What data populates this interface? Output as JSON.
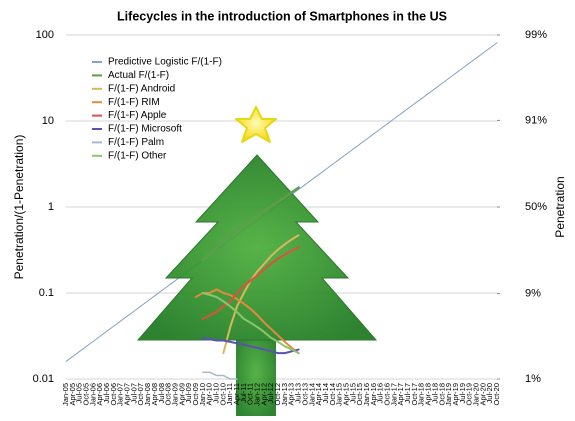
{
  "chart_data": {
    "type": "line",
    "title": "Lifecycles in the introduction of Smartphones in the US",
    "y_label": "Penetration/(1-Penetration)",
    "y2_label": "Penetration",
    "log_scale": true,
    "grid": true,
    "legend": "upper left",
    "ylim": [
      0.01,
      100
    ],
    "yticks": [
      {
        "value": 0.01,
        "label": "0.01"
      },
      {
        "value": 0.1,
        "label": "0.1"
      },
      1,
      10,
      100
    ],
    "y2scale": "logit",
    "y2lim": [
      1,
      99
    ],
    "y2ticks": [
      {
        "value": 1,
        "label": "1%"
      },
      {
        "value": 9,
        "label": "9%"
      },
      {
        "value": 50,
        "label": "50%"
      },
      {
        "value": 91,
        "label": "91%"
      },
      {
        "value": 99,
        "label": "99%"
      }
    ],
    "categories": [
      "Jan-05",
      "Apr-05",
      "Jul-05",
      "Oct-05",
      "Jan-06",
      "Apr-06",
      "Jul-06",
      "Oct-06",
      "Jan-07",
      "Apr-07",
      "Jul-07",
      "Oct-07",
      "Jan-08",
      "Apr-08",
      "Jul-08",
      "Oct-08",
      "Jan-09",
      "Apr-09",
      "Jul-09",
      "Oct-09",
      "Jan-10",
      "Apr-10",
      "Jul-10",
      "Oct-10",
      "Jan-11",
      "Apr-11",
      "Jul-11",
      "Oct-11",
      "Jan-12",
      "Apr-12",
      "Jul-12",
      "Oct-12",
      "Jan-13",
      "Apr-13",
      "Jul-13",
      "Oct-13",
      "Jan-14",
      "Apr-14",
      "Jul-14",
      "Oct-14",
      "Jan-15",
      "Apr-15",
      "Jul-15",
      "Oct-15",
      "Jan-16",
      "Apr-16",
      "Jul-16",
      "Oct-16",
      "Jan-17",
      "Apr-17",
      "Jul-17",
      "Oct-17",
      "Jan-18",
      "Apr-18",
      "Jul-18",
      "Oct-18",
      "Jan-19",
      "Apr-19",
      "Jul-19",
      "Oct-19",
      "Jan-20",
      "Apr-20",
      "Jul-20",
      "Oct-20"
    ],
    "series": [
      {
        "name": "Predictive Logistic F/(1-F)",
        "color": "#86a3c6",
        "width": 1,
        "values": [
          0.016,
          0.0183,
          0.021,
          0.024,
          0.0275,
          0.0315,
          0.0361,
          0.0413,
          0.0473,
          0.0541,
          0.062,
          0.071,
          0.0813,
          0.0931,
          0.107,
          0.122,
          0.14,
          0.16,
          0.183,
          0.21,
          0.24,
          0.275,
          0.315,
          0.361,
          0.413,
          0.473,
          0.541,
          0.62,
          0.71,
          0.813,
          0.931,
          1.07,
          1.22,
          1.4,
          1.6,
          1.83,
          2.1,
          2.4,
          2.75,
          3.15,
          3.61,
          4.13,
          4.73,
          5.41,
          6.2,
          7.1,
          8.13,
          9.31,
          10.7,
          12.2,
          14.0,
          16.0,
          18.3,
          21.0,
          24.0,
          27.5,
          31.5,
          36.1,
          41.3,
          47.3,
          54.1,
          62,
          71,
          81.3
        ]
      },
      {
        "name": "Actual F/(1-F)",
        "color": "#5e9e4b",
        "width": 2.5,
        "values": [
          null,
          null,
          null,
          null,
          null,
          null,
          null,
          null,
          null,
          null,
          null,
          null,
          null,
          null,
          null,
          null,
          null,
          null,
          null,
          null,
          0.24,
          0.28,
          0.33,
          0.39,
          0.46,
          0.53,
          0.6,
          0.68,
          0.78,
          0.9,
          1.02,
          1.15,
          1.3,
          1.48,
          1.68,
          null,
          null,
          null,
          null,
          null,
          null,
          null,
          null,
          null,
          null,
          null,
          null,
          null,
          null,
          null,
          null,
          null,
          null,
          null,
          null,
          null,
          null,
          null,
          null,
          null,
          null,
          null,
          null,
          null
        ]
      },
      {
        "name": "F/(1-F) Android",
        "color": "#dcb55c",
        "width": 2,
        "values": [
          null,
          null,
          null,
          null,
          null,
          null,
          null,
          null,
          null,
          null,
          null,
          null,
          null,
          null,
          null,
          null,
          null,
          null,
          null,
          null,
          null,
          null,
          null,
          0.02,
          0.04,
          0.07,
          0.1,
          0.14,
          0.18,
          0.22,
          0.27,
          0.32,
          0.37,
          0.42,
          0.47,
          null,
          null,
          null,
          null,
          null,
          null,
          null,
          null,
          null,
          null,
          null,
          null,
          null,
          null,
          null,
          null,
          null,
          null,
          null,
          null,
          null,
          null,
          null,
          null,
          null,
          null,
          null,
          null,
          null
        ]
      },
      {
        "name": "F/(1-F) RIM",
        "color": "#e38a3d",
        "width": 2,
        "values": [
          null,
          null,
          null,
          null,
          null,
          null,
          null,
          null,
          null,
          null,
          null,
          null,
          null,
          null,
          null,
          null,
          null,
          null,
          null,
          0.09,
          0.1,
          0.1,
          0.11,
          0.1,
          0.095,
          0.085,
          0.075,
          0.065,
          0.055,
          0.045,
          0.038,
          0.032,
          0.027,
          0.023,
          0.02,
          null,
          null,
          null,
          null,
          null,
          null,
          null,
          null,
          null,
          null,
          null,
          null,
          null,
          null,
          null,
          null,
          null,
          null,
          null,
          null,
          null,
          null,
          null,
          null,
          null,
          null,
          null,
          null,
          null
        ]
      },
      {
        "name": "F/(1-F) Apple",
        "color": "#d8553b",
        "width": 2,
        "values": [
          null,
          null,
          null,
          null,
          null,
          null,
          null,
          null,
          null,
          null,
          null,
          null,
          null,
          null,
          null,
          null,
          null,
          null,
          null,
          null,
          0.05,
          0.055,
          0.06,
          0.07,
          0.08,
          0.1,
          0.12,
          0.14,
          0.16,
          0.19,
          0.22,
          0.25,
          0.28,
          0.31,
          0.34,
          null,
          null,
          null,
          null,
          null,
          null,
          null,
          null,
          null,
          null,
          null,
          null,
          null,
          null,
          null,
          null,
          null,
          null,
          null,
          null,
          null,
          null,
          null,
          null,
          null,
          null,
          null,
          null,
          null
        ]
      },
      {
        "name": "F/(1-F) Microsoft",
        "color": "#5b50b3",
        "width": 2,
        "values": [
          null,
          null,
          null,
          null,
          null,
          null,
          null,
          null,
          null,
          null,
          null,
          null,
          null,
          null,
          null,
          null,
          null,
          null,
          null,
          null,
          0.03,
          0.029,
          0.028,
          0.028,
          0.027,
          0.026,
          0.025,
          0.024,
          0.023,
          0.022,
          0.021,
          0.02,
          0.02,
          0.021,
          0.022,
          null,
          null,
          null,
          null,
          null,
          null,
          null,
          null,
          null,
          null,
          null,
          null,
          null,
          null,
          null,
          null,
          null,
          null,
          null,
          null,
          null,
          null,
          null,
          null,
          null,
          null,
          null,
          null,
          null
        ]
      },
      {
        "name": "F/(1-F) Palm",
        "color": "#a9b9cc",
        "width": 1.5,
        "values": [
          null,
          null,
          null,
          null,
          null,
          null,
          null,
          null,
          null,
          null,
          null,
          null,
          null,
          null,
          null,
          null,
          null,
          null,
          null,
          null,
          0.012,
          0.012,
          0.011,
          0.011,
          0.01,
          0.01,
          null,
          null,
          null,
          null,
          null,
          null,
          null,
          null,
          null,
          null,
          null,
          null,
          null,
          null,
          null,
          null,
          null,
          null,
          null,
          null,
          null,
          null,
          null,
          null,
          null,
          null,
          null,
          null,
          null,
          null,
          null,
          null,
          null,
          null,
          null,
          null,
          null,
          null
        ]
      },
      {
        "name": "F/(1-F) Other",
        "color": "#8cc66b",
        "width": 2,
        "values": [
          null,
          null,
          null,
          null,
          null,
          null,
          null,
          null,
          null,
          null,
          null,
          null,
          null,
          null,
          null,
          null,
          null,
          null,
          null,
          null,
          0.1,
          0.095,
          0.09,
          0.08,
          0.07,
          0.06,
          0.05,
          0.045,
          0.04,
          0.035,
          0.03,
          0.027,
          0.024,
          0.022,
          0.02,
          null,
          null,
          null,
          null,
          null,
          null,
          null,
          null,
          null,
          null,
          null,
          null,
          null,
          null,
          null,
          null,
          null,
          null,
          null,
          null,
          null,
          null,
          null,
          null,
          null,
          null,
          null,
          null,
          null
        ]
      }
    ]
  }
}
